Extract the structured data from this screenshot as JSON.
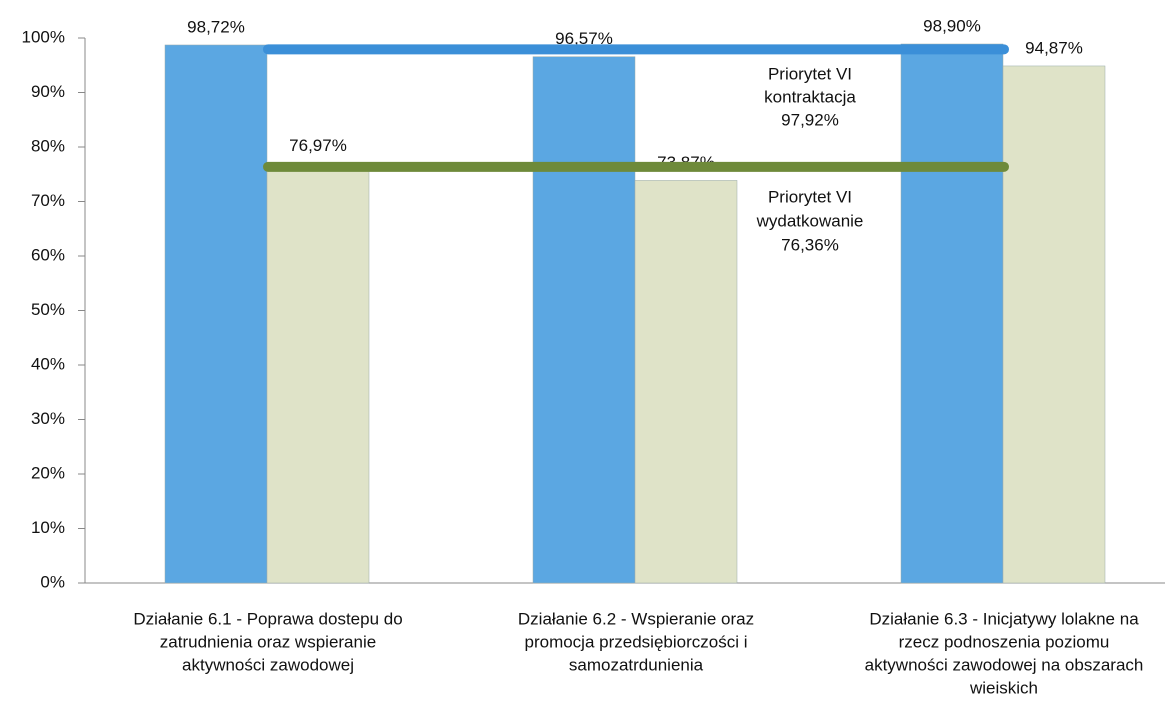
{
  "chart_data": {
    "type": "bar",
    "categories": [
      [
        "Działanie 6.1 - Poprawa dostepu do",
        "zatrudnienia oraz wspieranie",
        "aktywności zawodowej"
      ],
      [
        "Działanie 6.2 - Wspieranie oraz",
        "promocja przedsiębiorczości i",
        "samozatrdunienia"
      ],
      [
        "Działanie 6.3 - Inicjatywy lolakne na",
        "rzecz podnoszenia poziomu",
        "aktywności zawodowej na obszarach",
        "wieiskich"
      ]
    ],
    "series": [
      {
        "color": "#5ba7e2",
        "values": [
          98.72,
          96.57,
          98.9
        ],
        "value_labels": [
          "98,72%",
          "96,57%",
          "98,90%"
        ]
      },
      {
        "color": "#dfe3c8",
        "values": [
          76.97,
          73.87,
          94.87
        ],
        "value_labels": [
          "76,97%",
          "73,87%",
          "94,87%"
        ]
      }
    ],
    "reference_lines": [
      {
        "label": [
          "Priorytet VI",
          "kontraktacja"
        ],
        "value": 97.92,
        "value_label": "97,92%",
        "color": "#3b8fd8"
      },
      {
        "label": [
          "Priorytet VI",
          "wydatkowanie"
        ],
        "value": 76.36,
        "value_label": "76,36%",
        "color": "#6e8a3a"
      }
    ],
    "ylim": [
      0,
      100
    ],
    "yticks": [
      {
        "value": 0,
        "label": "0%"
      },
      {
        "value": 10,
        "label": "10%"
      },
      {
        "value": 20,
        "label": "20%"
      },
      {
        "value": 30,
        "label": "30%"
      },
      {
        "value": 40,
        "label": "40%"
      },
      {
        "value": 50,
        "label": "50%"
      },
      {
        "value": 60,
        "label": "60%"
      },
      {
        "value": 70,
        "label": "70%"
      },
      {
        "value": 80,
        "label": "80%"
      },
      {
        "value": 90,
        "label": "90%"
      },
      {
        "value": 100,
        "label": "100%"
      }
    ]
  }
}
